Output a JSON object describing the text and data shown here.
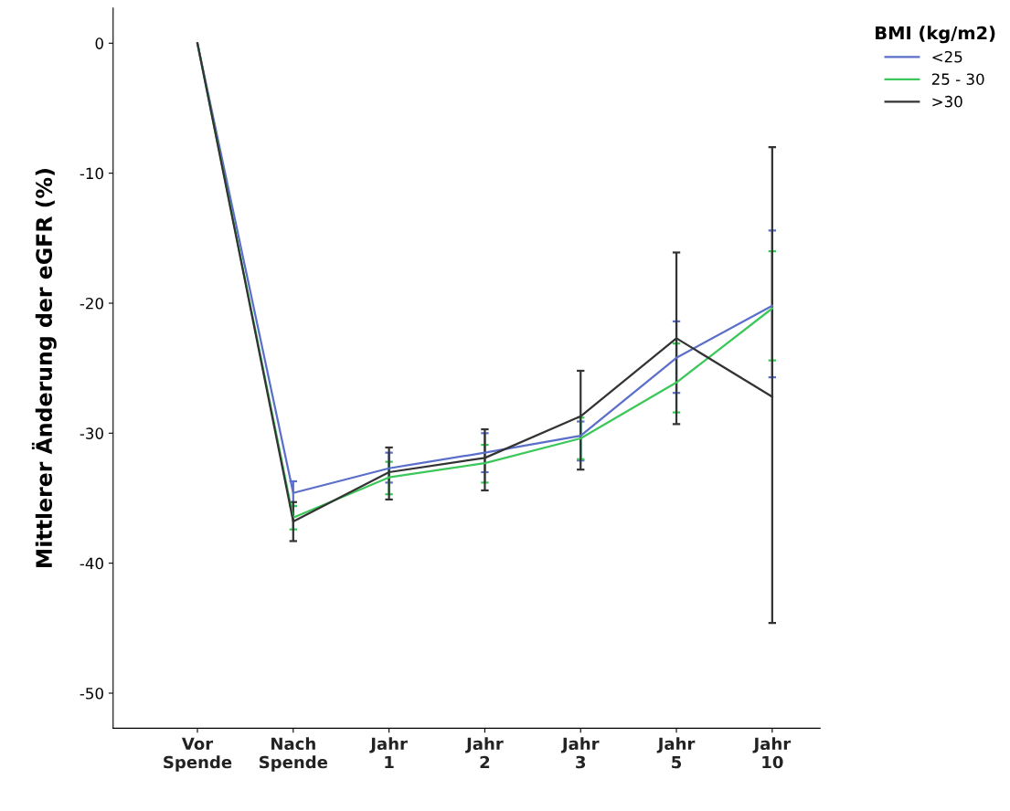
{
  "chart_data": {
    "type": "line",
    "ylabel": "Mittlerer Änderung der eGFR (%)",
    "legend_title": "BMI (kg/m2)",
    "legend": "top right",
    "categories": [
      "Vor\nSpende",
      "Nach\nSpende",
      "Jahr\n1",
      "Jahr\n2",
      "Jahr\n3",
      "Jahr\n5",
      "Jahr\n10"
    ],
    "ylim": [
      -52.7,
      2.7
    ],
    "yticks": [
      0,
      -10,
      -20,
      -30,
      -40,
      -50
    ],
    "grid": false,
    "marker": "none",
    "line_style": "solid",
    "series": [
      {
        "name": "<25",
        "color": "#5b6ec9",
        "values": [
          0,
          -34.6,
          -32.7,
          -31.5,
          -30.2,
          -24.2,
          -20.2
        ],
        "errors": [
          null,
          [
            -35.6,
            -33.7
          ],
          [
            -33.8,
            -31.5
          ],
          [
            -33.0,
            -30.0
          ],
          [
            -32.1,
            -29.1
          ],
          [
            -26.9,
            -21.4
          ],
          [
            -25.7,
            -14.4
          ]
        ]
      },
      {
        "name": "25 - 30",
        "color": "#3cc75a",
        "values": [
          0,
          -36.5,
          -33.4,
          -32.3,
          -30.4,
          -26.1,
          -20.4
        ],
        "errors": [
          null,
          [
            -37.4,
            -35.6
          ],
          [
            -34.7,
            -32.2
          ],
          [
            -33.8,
            -30.9
          ],
          [
            -32.0,
            -28.8
          ],
          [
            -28.4,
            -23.1
          ],
          [
            -24.4,
            -16.0
          ]
        ]
      },
      {
        "name": ">30",
        "color": "#333333",
        "values": [
          0,
          -36.8,
          -33.0,
          -31.9,
          -28.7,
          -22.7,
          -27.2
        ],
        "errors": [
          null,
          [
            -38.3,
            -35.3
          ],
          [
            -35.1,
            -31.1
          ],
          [
            -34.4,
            -29.7
          ],
          [
            -32.8,
            -25.2
          ],
          [
            -29.3,
            -16.1
          ],
          [
            -44.6,
            -8.0
          ]
        ]
      }
    ]
  }
}
